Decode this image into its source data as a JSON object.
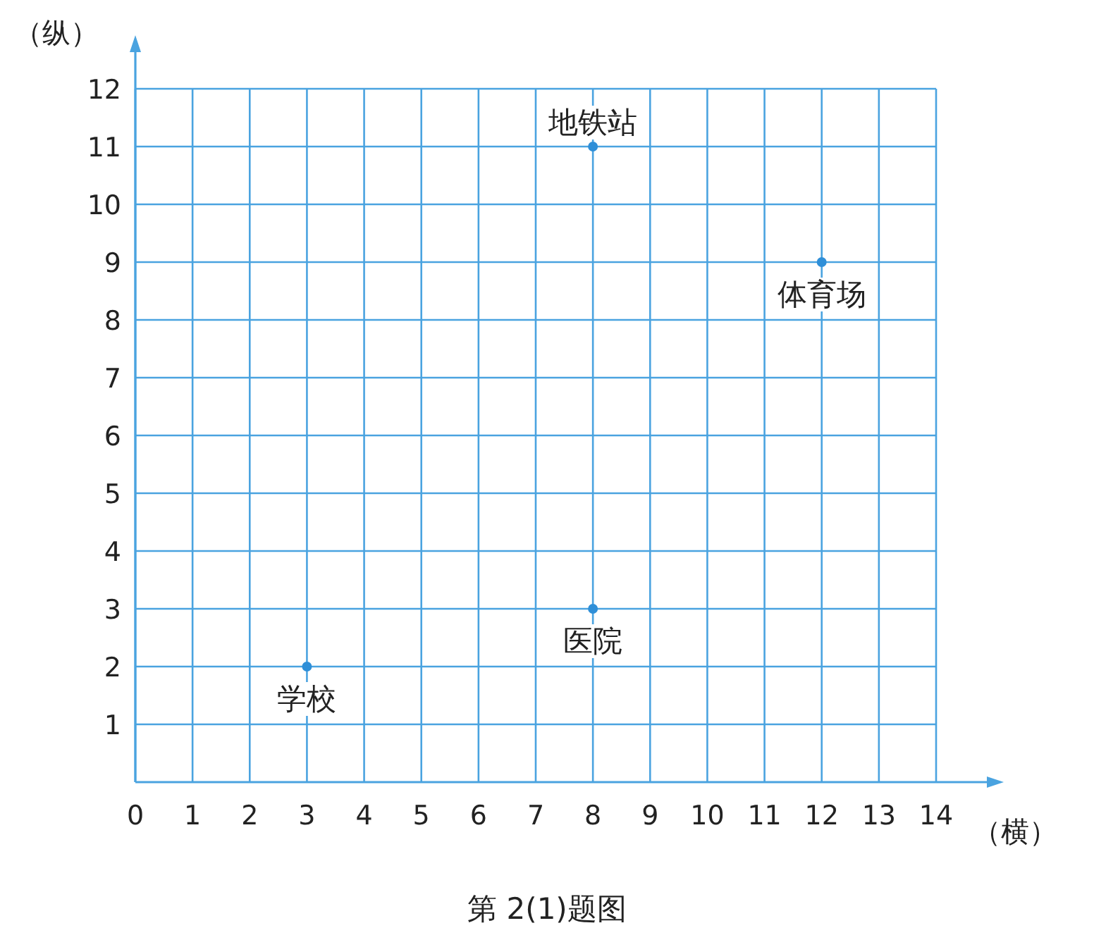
{
  "chart_data": {
    "type": "scatter",
    "xlabel": "（横）",
    "ylabel": "（纵）",
    "x": [
      3,
      8,
      8,
      12
    ],
    "values": [
      2,
      3,
      11,
      9
    ],
    "color": "#2f8fd8",
    "marker": "circle",
    "grid": true,
    "xlim": [
      0,
      14
    ],
    "ylim": [
      0,
      12
    ],
    "xticks": [
      0,
      1,
      2,
      3,
      4,
      5,
      6,
      7,
      8,
      9,
      10,
      11,
      12,
      13,
      14
    ],
    "yticks": [
      1,
      2,
      3,
      4,
      5,
      6,
      7,
      8,
      9,
      10,
      11,
      12
    ],
    "annotations": [
      {
        "text": "学校",
        "x": 3,
        "y": 2
      },
      {
        "text": "医院",
        "x": 8,
        "y": 3
      },
      {
        "text": "地铁站",
        "x": 8,
        "y": 11
      },
      {
        "text": "体育场",
        "x": 12,
        "y": 9
      },
      "第 2(1)题图"
    ]
  }
}
